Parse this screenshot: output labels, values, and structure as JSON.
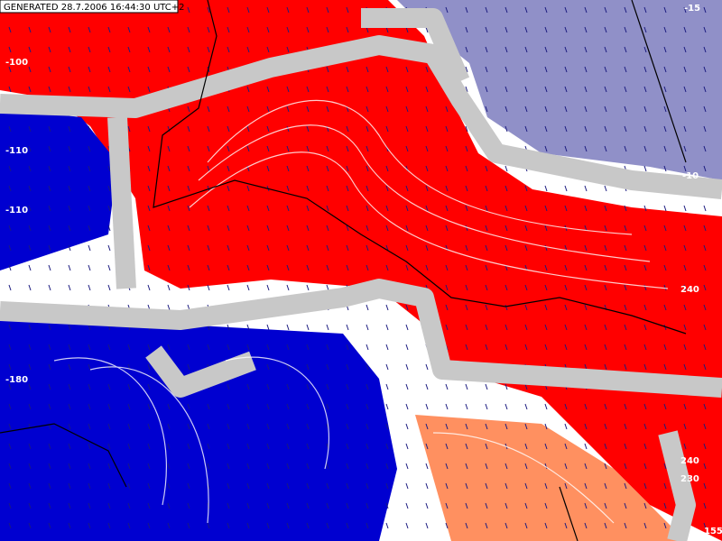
{
  "header": {
    "generated": "GENERATED 28.7.2006 16:44:30 UTC+2"
  },
  "contour_labels": [
    "-15",
    "-100",
    "-110",
    "-110",
    "-180",
    "-10",
    "240",
    "240",
    "230",
    "155"
  ]
}
